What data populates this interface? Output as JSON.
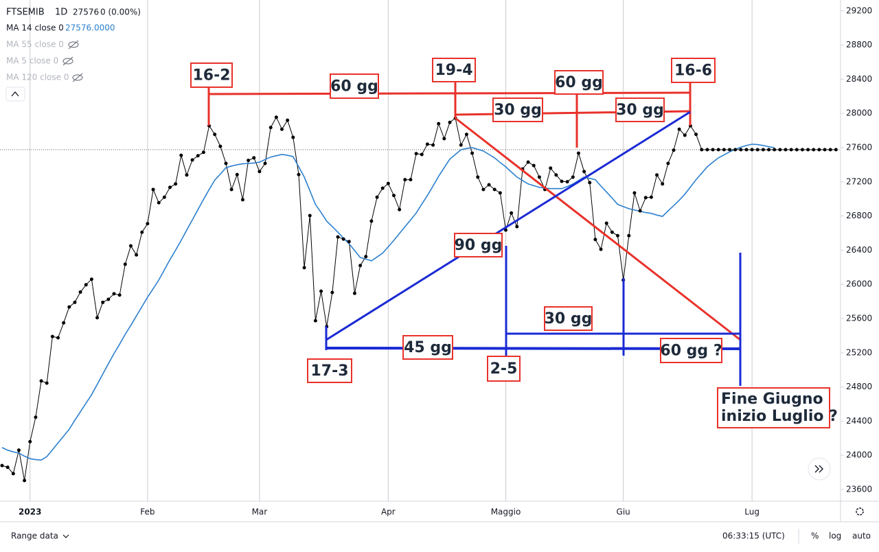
{
  "chart_data": {
    "type": "line",
    "header": {
      "interval": "1D",
      "last": "27576",
      "change": "0 (0.00%)",
      "ma_value": "27576.0000"
    },
    "hidden_indicators": [
      "MA 55 close 0",
      "MA 5 close 0",
      "MA 120 close 0"
    ],
    "categories": [
      null,
      null,
      null,
      null,
      null,
      "2023",
      null,
      null,
      null,
      null,
      null,
      null,
      null,
      null,
      null,
      null,
      null,
      null,
      null,
      null,
      null,
      null,
      null,
      null,
      null,
      null,
      "Feb",
      null,
      null,
      null,
      null,
      null,
      null,
      null,
      null,
      null,
      null,
      null,
      null,
      null,
      null,
      null,
      null,
      null,
      null,
      null,
      "Mar",
      null,
      null,
      null,
      null,
      null,
      null,
      null,
      null,
      null,
      null,
      null,
      null,
      null,
      null,
      null,
      null,
      null,
      null,
      null,
      null,
      null,
      null,
      "Apr",
      null,
      null,
      null,
      null,
      null,
      null,
      null,
      null,
      null,
      null,
      null,
      null,
      null,
      null,
      null,
      null,
      null,
      null,
      null,
      null,
      "Maggio",
      null,
      null,
      null,
      null,
      null,
      null,
      null,
      null,
      null,
      null,
      null,
      null,
      null,
      null,
      null,
      null,
      null,
      null,
      null,
      null,
      "Giu",
      null,
      null,
      null,
      null,
      null,
      null,
      null,
      null,
      null,
      null,
      null,
      null,
      null,
      null,
      null,
      null,
      null,
      null,
      null,
      null,
      null,
      null,
      "Lug",
      null,
      null,
      null,
      null,
      null,
      null,
      null,
      null,
      null,
      null,
      null,
      null,
      null,
      null,
      null
    ],
    "series": [
      {
        "name": "FTSEMIB",
        "color": "#000000",
        "values": [
          23880,
          23860,
          23785,
          24060,
          23705,
          24160,
          24445,
          24870,
          24845,
          25390,
          25375,
          25550,
          25735,
          25790,
          25910,
          25995,
          26060,
          25610,
          25790,
          25825,
          25890,
          25875,
          26235,
          26450,
          26345,
          26610,
          26710,
          27110,
          26955,
          27020,
          27135,
          27175,
          27510,
          27280,
          27455,
          27505,
          27545,
          27855,
          27755,
          27615,
          27415,
          27110,
          27285,
          26990,
          27450,
          27480,
          27320,
          27415,
          27835,
          27955,
          27815,
          27920,
          27720,
          27285,
          26195,
          26805,
          25575,
          25920,
          25505,
          25905,
          26555,
          26530,
          26500,
          25895,
          26220,
          26325,
          26740,
          27020,
          27125,
          27180,
          27040,
          26875,
          27225,
          27225,
          27530,
          27520,
          27640,
          27630,
          27880,
          27705,
          27895,
          27945,
          27630,
          27755,
          27535,
          27255,
          27110,
          27165,
          27110,
          27070,
          26635,
          26835,
          26675,
          27350,
          27430,
          27390,
          27255,
          27110,
          27360,
          27280,
          27205,
          27200,
          27255,
          27535,
          27320,
          27190,
          26525,
          26410,
          26715,
          26610,
          26570,
          26050,
          26570,
          27070,
          26860,
          27015,
          27020,
          27280,
          27175,
          27415,
          27570,
          27815,
          27745,
          27855,
          27755,
          27576,
          27576,
          27576,
          27576,
          27576,
          27576,
          27576,
          27576,
          27576,
          27576,
          27576,
          27576,
          27576,
          27576,
          27576,
          27576,
          27576,
          27576,
          27576,
          27576,
          27576,
          27576,
          27576,
          27576,
          27576
        ]
      },
      {
        "name": "MA 14 close 0",
        "color": "#2a7fcf",
        "values": [
          24090,
          24060,
          24040,
          24025,
          23990,
          23960,
          23950,
          23945,
          23985,
          24065,
          24145,
          24225,
          24305,
          24410,
          24510,
          24610,
          24710,
          24830,
          24950,
          25070,
          25190,
          25300,
          25415,
          25520,
          25630,
          25740,
          25850,
          25950,
          26050,
          26170,
          26290,
          26400,
          26515,
          26635,
          26755,
          26875,
          26995,
          27110,
          27220,
          27290,
          27365,
          27385,
          27400,
          27410,
          27415,
          27420,
          27430,
          27460,
          27490,
          27505,
          27520,
          27510,
          27495,
          27375,
          27255,
          27095,
          26935,
          26840,
          26740,
          26675,
          26610,
          26540,
          26475,
          26395,
          26315,
          26295,
          26275,
          26320,
          26365,
          26440,
          26515,
          26595,
          26675,
          26755,
          26835,
          26940,
          27040,
          27150,
          27265,
          27365,
          27465,
          27520,
          27575,
          27590,
          27600,
          27580,
          27560,
          27520,
          27480,
          27425,
          27375,
          27315,
          27255,
          27215,
          27175,
          27155,
          27135,
          27125,
          27120,
          27120,
          27120,
          27145,
          27175,
          27215,
          27255,
          27240,
          27225,
          27150,
          27080,
          27010,
          26935,
          26910,
          26885,
          26870,
          26855,
          26840,
          26830,
          26810,
          26795,
          26860,
          26920,
          26985,
          27055,
          27140,
          27225,
          27300,
          27375,
          27430,
          27480,
          27515,
          27550,
          27580,
          27605,
          27625,
          27640,
          27635,
          27625,
          27610,
          27600,
          null,
          null,
          null,
          null,
          null,
          null,
          null,
          null,
          null,
          null,
          null
        ]
      }
    ],
    "ylim": [
      23463,
      29327
    ],
    "yticks": [
      23600,
      24000,
      24400,
      24800,
      25200,
      25600,
      26000,
      26400,
      26800,
      27200,
      27600,
      28000,
      28400,
      28800,
      29200
    ],
    "grid": "vertical",
    "annotations": [
      "16-2",
      "60 gg",
      "19-4",
      "60 gg",
      "16-6",
      "30 gg",
      "30 gg",
      "90 gg",
      "30 gg",
      "45 gg",
      "60 gg ?",
      "17-3",
      "2-5",
      "Fine Giugno",
      "inizio Luglio ?"
    ],
    "footer": {
      "range": "Range data",
      "time": "06:33:15 (UTC)",
      "percent": "%",
      "log": "log",
      "auto": "auto"
    }
  }
}
